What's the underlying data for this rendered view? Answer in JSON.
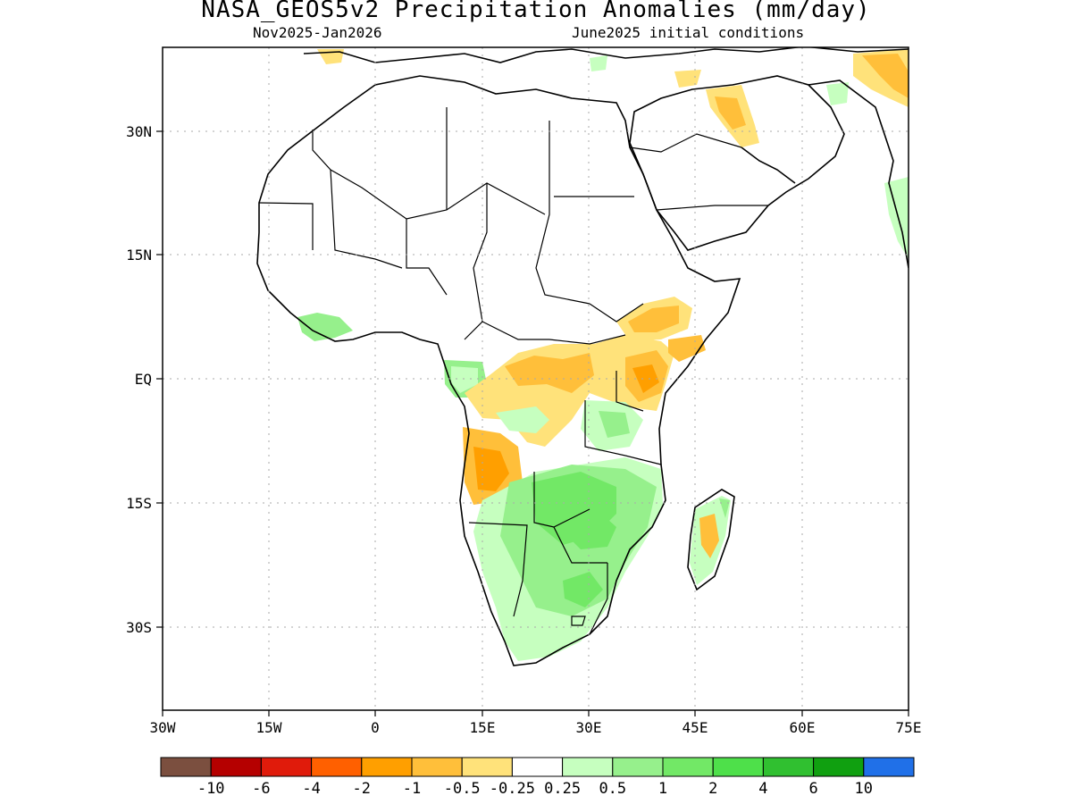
{
  "title": "NASA_GEOS5v2 Precipitation Anomalies (mm/day)",
  "subtitle_left": "Nov2025-Jan2026",
  "subtitle_right": "June2025 initial conditions",
  "axes": {
    "lon_ticks": [
      "30W",
      "15W",
      "0",
      "15E",
      "30E",
      "45E",
      "60E",
      "75E"
    ],
    "lat_ticks": [
      "30N",
      "15N",
      "EQ",
      "15S",
      "30S"
    ]
  },
  "colorbar": {
    "labels": [
      "-10",
      "-6",
      "-4",
      "-2",
      "-1",
      "-0.5",
      "-0.25",
      "0.25",
      "0.5",
      "1",
      "2",
      "4",
      "6",
      "10"
    ],
    "colors": [
      "#7b4f3f",
      "#b50000",
      "#e01b0b",
      "#ff6000",
      "#ff9f00",
      "#ffbf3a",
      "#ffe27a",
      "#ffffff",
      "#c6ffbf",
      "#96f08c",
      "#72e866",
      "#4ee04a",
      "#30c030",
      "#10a010",
      "#2070e8"
    ]
  },
  "colors": {
    "dry_light": "#ffe27a",
    "dry_medium": "#ffbf3a",
    "dry_strong": "#ff9f00",
    "wet_light": "#c6ffbf",
    "wet_medium": "#96f08c",
    "wet_strong": "#72e866"
  }
}
